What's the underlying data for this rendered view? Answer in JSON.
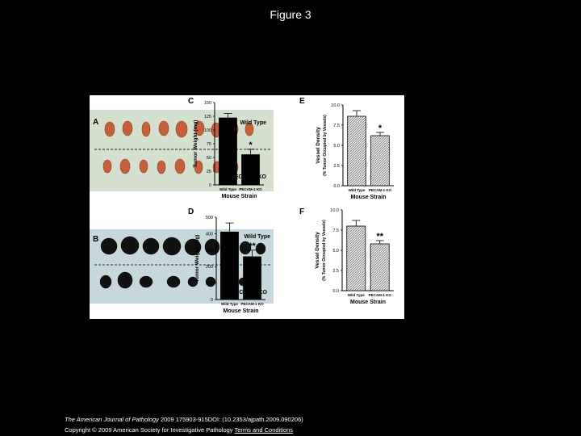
{
  "slide_title": "Figure 3",
  "photos": {
    "A": {
      "letter": "A",
      "top_label": "Wild Type",
      "bottom_label": "PECAM-1 KO"
    },
    "B": {
      "letter": "B",
      "top_label": "Wild Type",
      "bottom_label": "PECAM-1 KO"
    }
  },
  "chart_data": [
    {
      "panel": "C",
      "type": "bar",
      "categories": [
        "Wild Type",
        "PECAM-1 KO"
      ],
      "values": [
        122,
        55
      ],
      "errors": [
        8,
        10
      ],
      "significance": [
        "",
        "*"
      ],
      "xlabel": "Mouse Strain",
      "ylabel": "Tumor Weight (mg)",
      "ylim": [
        0,
        150
      ],
      "yticks": [
        "0",
        "25",
        "50",
        "75",
        "100",
        "125",
        "150"
      ],
      "fill": "solid"
    },
    {
      "panel": "E",
      "type": "bar",
      "categories": [
        "Wild Type",
        "PECAM-1 KO"
      ],
      "values": [
        8.6,
        6.2
      ],
      "errors": [
        0.7,
        0.4
      ],
      "significance": [
        "",
        "*"
      ],
      "xlabel": "Mouse Strain",
      "ylabel": "Vessel Density",
      "ylabel2": "(% Tumor Occupied by Vessels)",
      "ylim": [
        0,
        10
      ],
      "yticks": [
        "0.0",
        "2.5",
        "5.0",
        "7.5",
        "10.0"
      ],
      "fill": "hatched"
    },
    {
      "panel": "D",
      "type": "bar",
      "categories": [
        "Wild Type",
        "PECAM-1 KO"
      ],
      "values": [
        410,
        260
      ],
      "errors": [
        55,
        40
      ],
      "significance": [
        "",
        "**"
      ],
      "xlabel": "Mouse Strain",
      "ylabel": "Tumor Weight (mg)",
      "ylim": [
        0,
        500
      ],
      "yticks": [
        "0",
        "100",
        "200",
        "300",
        "400",
        "500"
      ],
      "fill": "solid"
    },
    {
      "panel": "F",
      "type": "bar",
      "categories": [
        "Wild Type",
        "PECAM-1 KO"
      ],
      "values": [
        8.0,
        5.8
      ],
      "errors": [
        0.7,
        0.4
      ],
      "significance": [
        "",
        "**"
      ],
      "xlabel": "Mouse Strain",
      "ylabel": "Vessel Density",
      "ylabel2": "(% Tumor Occupied by Vessels)",
      "ylim": [
        0,
        10
      ],
      "yticks": [
        "0.0",
        "2.5",
        "5.0",
        "7.5",
        "10.0"
      ],
      "fill": "hatched"
    }
  ],
  "caption": {
    "journal": "The American Journal of Pathology",
    "citation": " 2009 175903-915DOI: (10.2353/ajpath.2009.090206)",
    "copyright": "Copyright © 2009 American Society for Investigative Pathology",
    "terms_link": "Terms and Conditions"
  }
}
